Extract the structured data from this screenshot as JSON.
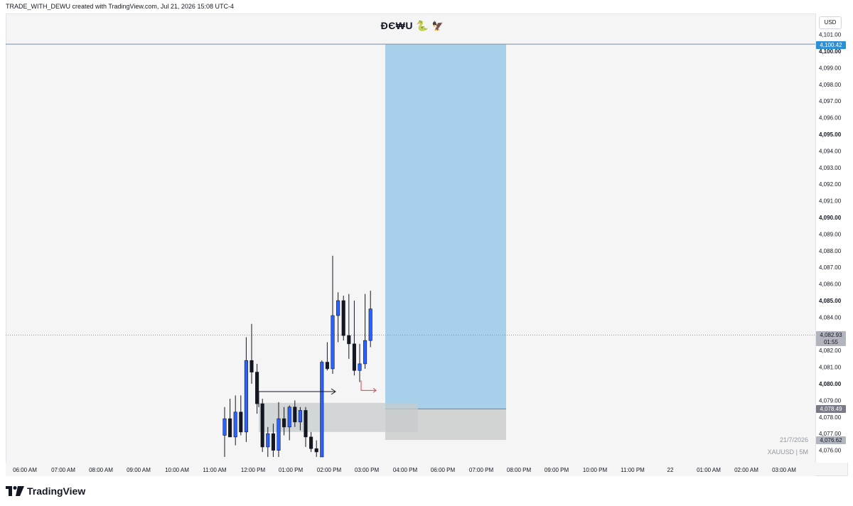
{
  "header": {
    "caption": "TRADE_WITH_DEWU created with TradingView.com, Jul 21, 2026 15:08 UTC-4",
    "title_text": "ĐЄ₩U",
    "title_emoji_1": "🐍",
    "title_emoji_2": "🦅"
  },
  "price_axis": {
    "currency": "USD",
    "ticks": [
      "4,101.00",
      "4,100.00",
      "4,099.00",
      "4,098.00",
      "4,097.00",
      "4,096.00",
      "4,095.00",
      "4,094.00",
      "4,093.00",
      "4,092.00",
      "4,091.00",
      "4,090.00",
      "4,089.00",
      "4,088.00",
      "4,087.00",
      "4,086.00",
      "4,085.00",
      "4,084.00",
      "4,083.00",
      "4,082.00",
      "4,081.00",
      "4,080.00",
      "4,079.00",
      "4,078.00",
      "4,077.00",
      "4,076.00"
    ],
    "bold_ticks": [
      "4,100.00",
      "4,095.00",
      "4,090.00",
      "4,085.00",
      "4,080.00"
    ]
  },
  "badges": {
    "target": "4,100.42",
    "current_price": "4,082.93",
    "countdown": "01:55",
    "entry": "4,078.49",
    "stop": "4,076.62"
  },
  "time_axis": {
    "labels": [
      "06:00 AM",
      "07:00 AM",
      "08:00 AM",
      "09:00 AM",
      "10:00 AM",
      "11:00 AM",
      "12:00 PM",
      "01:00 PM",
      "02:00 PM",
      "03:00 PM",
      "04:00 PM",
      "06:00 PM",
      "07:00 PM",
      "08:00 PM",
      "09:00 PM",
      "10:00 PM",
      "11:00 PM",
      "22",
      "01:00 AM",
      "02:00 AM",
      "03:00 AM"
    ]
  },
  "watermark": {
    "date": "21/7/2026",
    "symbol": "XAUUSD | 5M"
  },
  "branding": {
    "logo_text": "TradingView"
  },
  "colors": {
    "bull": "#2962ff",
    "bear": "#131722",
    "profit_zone": "#a9d0eb",
    "loss_zone": "#d1d4d3",
    "arrow_red": "#f23645"
  },
  "chart_data": {
    "type": "candlestick",
    "symbol": "XAUUSD",
    "interval": "5M",
    "ylim": [
      4075.6,
      4101.4
    ],
    "x_labels": [
      "06:00 AM",
      "07:00 AM",
      "08:00 AM",
      "09:00 AM",
      "10:00 AM",
      "11:00 AM",
      "12:00 PM",
      "01:00 PM",
      "02:00 PM",
      "03:00 PM",
      "04:00 PM",
      "06:00 PM",
      "07:00 PM",
      "08:00 PM",
      "09:00 PM",
      "10:00 PM",
      "11:00 PM",
      "22",
      "01:00 AM",
      "02:00 AM",
      "03:00 AM"
    ],
    "last_price": 4082.93,
    "candles": [
      {
        "o": 4076.9,
        "h": 4078.6,
        "l": 4075.6,
        "c": 4077.9
      },
      {
        "o": 4077.9,
        "h": 4079.1,
        "l": 4076.8,
        "c": 4076.8
      },
      {
        "o": 4076.8,
        "h": 4079.3,
        "l": 4076.3,
        "c": 4078.3
      },
      {
        "o": 4078.3,
        "h": 4079.3,
        "l": 4076.9,
        "c": 4077.1
      },
      {
        "o": 4077.1,
        "h": 4082.8,
        "l": 4076.5,
        "c": 4081.4
      },
      {
        "o": 4081.4,
        "h": 4083.6,
        "l": 4080.0,
        "c": 4080.7
      },
      {
        "o": 4080.7,
        "h": 4081.2,
        "l": 4078.2,
        "c": 4078.8
      },
      {
        "o": 4078.8,
        "h": 4079.1,
        "l": 4075.9,
        "c": 4076.2
      },
      {
        "o": 4076.2,
        "h": 4077.4,
        "l": 4075.6,
        "c": 4077.0
      },
      {
        "o": 4077.0,
        "h": 4077.6,
        "l": 4075.6,
        "c": 4076.0
      },
      {
        "o": 4076.0,
        "h": 4078.9,
        "l": 4075.6,
        "c": 4077.9
      },
      {
        "o": 4077.9,
        "h": 4078.6,
        "l": 4076.9,
        "c": 4077.4
      },
      {
        "o": 4077.4,
        "h": 4078.7,
        "l": 4076.6,
        "c": 4078.6
      },
      {
        "o": 4078.6,
        "h": 4079.0,
        "l": 4077.4,
        "c": 4077.7
      },
      {
        "o": 4077.7,
        "h": 4078.6,
        "l": 4077.2,
        "c": 4078.4
      },
      {
        "o": 4078.4,
        "h": 4078.6,
        "l": 4076.2,
        "c": 4076.8
      },
      {
        "o": 4076.8,
        "h": 4077.1,
        "l": 4075.9,
        "c": 4076.1
      },
      {
        "o": 4076.1,
        "h": 4076.6,
        "l": 4075.6,
        "c": 4075.9
      },
      {
        "o": 4075.6,
        "h": 4081.4,
        "l": 4075.6,
        "c": 4081.3
      },
      {
        "o": 4081.3,
        "h": 4082.5,
        "l": 4080.8,
        "c": 4080.9
      },
      {
        "o": 4080.9,
        "h": 4087.7,
        "l": 4080.6,
        "c": 4084.1
      },
      {
        "o": 4084.1,
        "h": 4085.5,
        "l": 4082.5,
        "c": 4085.0
      },
      {
        "o": 4085.0,
        "h": 4085.3,
        "l": 4082.6,
        "c": 4082.9
      },
      {
        "o": 4082.9,
        "h": 4085.4,
        "l": 4081.5,
        "c": 4082.4
      },
      {
        "o": 4082.4,
        "h": 4085.0,
        "l": 4080.5,
        "c": 4080.8
      },
      {
        "o": 4080.8,
        "h": 4082.4,
        "l": 4080.1,
        "c": 4081.2
      },
      {
        "o": 4081.2,
        "h": 4085.4,
        "l": 4080.9,
        "c": 4082.6
      },
      {
        "o": 4082.6,
        "h": 4085.6,
        "l": 4082.2,
        "c": 4084.5
      }
    ],
    "position": {
      "type": "long",
      "entry": 4078.49,
      "target": 4100.42,
      "stop": 4076.62,
      "start": "03:25 PM",
      "end": "07:45 PM"
    },
    "grid": false
  }
}
